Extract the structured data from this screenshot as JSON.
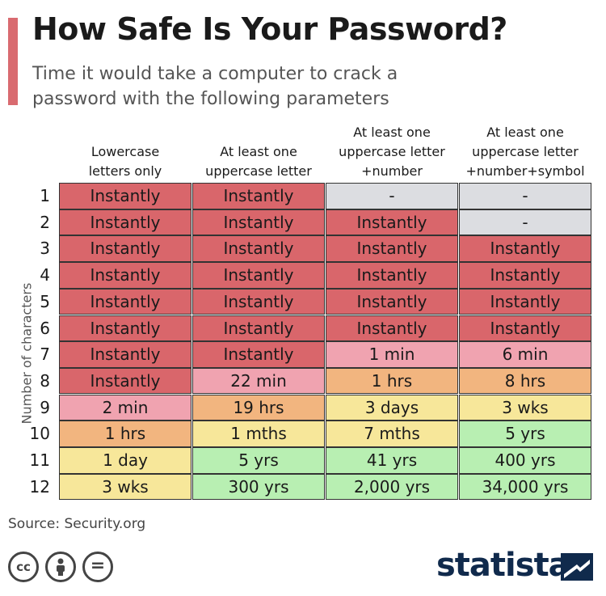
{
  "header": {
    "title": "How Safe Is Your Password?",
    "subtitle": "Time it would take a computer to crack a password with the following parameters"
  },
  "chart_data": {
    "type": "table",
    "title": "How Safe Is Your Password?",
    "subtitle": "Time it would take a computer to crack a password with the following parameters",
    "ylabel": "Number of characters",
    "columns": [
      [
        "Lowercase",
        "letters only"
      ],
      [
        "At least one",
        "uppercase letter"
      ],
      [
        "At least one",
        "uppercase letter",
        "+number"
      ],
      [
        "At least one",
        "uppercase letter",
        "+number+symbol"
      ]
    ],
    "row_labels": [
      "1",
      "2",
      "3",
      "4",
      "5",
      "6",
      "7",
      "8",
      "9",
      "10",
      "11",
      "12"
    ],
    "rows": [
      [
        "Instantly",
        "Instantly",
        "-",
        "-"
      ],
      [
        "Instantly",
        "Instantly",
        "Instantly",
        "-"
      ],
      [
        "Instantly",
        "Instantly",
        "Instantly",
        "Instantly"
      ],
      [
        "Instantly",
        "Instantly",
        "Instantly",
        "Instantly"
      ],
      [
        "Instantly",
        "Instantly",
        "Instantly",
        "Instantly"
      ],
      [
        "Instantly",
        "Instantly",
        "Instantly",
        "Instantly"
      ],
      [
        "Instantly",
        "Instantly",
        "1 min",
        "6 min"
      ],
      [
        "Instantly",
        "22 min",
        "1 hrs",
        "8 hrs"
      ],
      [
        "2 min",
        "19 hrs",
        "3 days",
        "3 wks"
      ],
      [
        "1 hrs",
        "1 mths",
        "7 mths",
        "5 yrs"
      ],
      [
        "1 day",
        "5 yrs",
        "41 yrs",
        "400 yrs"
      ],
      [
        "3 wks",
        "300 yrs",
        "2,000 yrs",
        "34,000 yrs"
      ]
    ],
    "cell_levels": [
      [
        "red",
        "red",
        "grey",
        "grey"
      ],
      [
        "red",
        "red",
        "red",
        "grey"
      ],
      [
        "red",
        "red",
        "red",
        "red"
      ],
      [
        "red",
        "red",
        "red",
        "red"
      ],
      [
        "red",
        "red",
        "red",
        "red"
      ],
      [
        "red",
        "red",
        "red",
        "red"
      ],
      [
        "red",
        "red",
        "pink",
        "pink"
      ],
      [
        "red",
        "pink",
        "orange",
        "orange"
      ],
      [
        "pink",
        "orange",
        "yellow",
        "yellow"
      ],
      [
        "orange",
        "yellow",
        "yellow",
        "green"
      ],
      [
        "yellow",
        "green",
        "green",
        "green"
      ],
      [
        "yellow",
        "green",
        "green",
        "green"
      ]
    ],
    "colors": {
      "red": "#d9666b",
      "pink": "#f0a3b0",
      "orange": "#f2b57f",
      "yellow": "#f7e79a",
      "green": "#b8efb2",
      "grey": "#dcdde1"
    }
  },
  "footer": {
    "source": "Source: Security.org",
    "license_icons": [
      "cc-icon",
      "by-attribution-icon",
      "no-derivatives-icon"
    ],
    "license_glyphs": [
      "cc",
      "=",
      ""
    ],
    "brand": "statista"
  },
  "theme": {
    "accent": "#d96b70",
    "brand_color": "#102a4c"
  }
}
